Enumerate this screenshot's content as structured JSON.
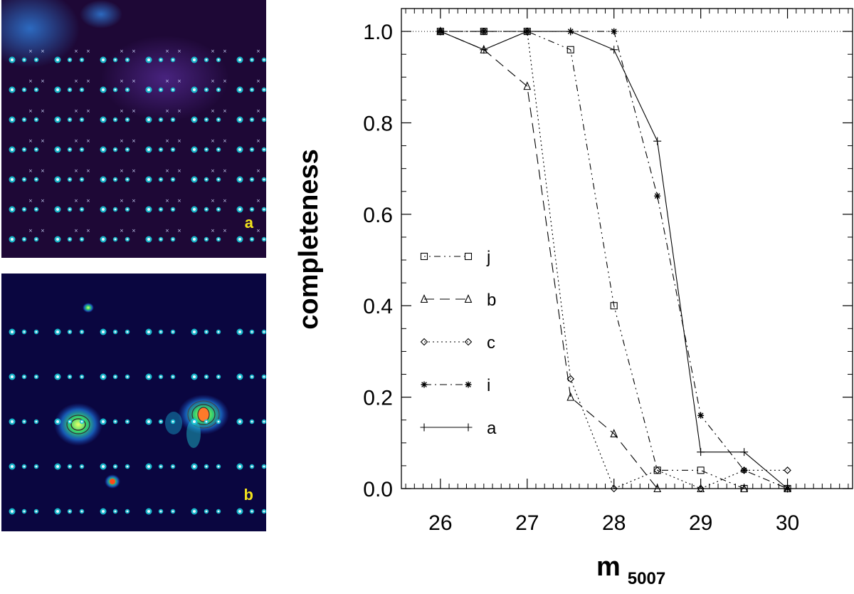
{
  "panels": {
    "a": {
      "label": "a",
      "grid_rows": 7,
      "grid_cols": 19
    },
    "b": {
      "label": "b",
      "grid_rows": 5,
      "grid_cols": 19
    }
  },
  "colors": {
    "panel_a_bg": "#1e0836",
    "panel_b_bg": "#0a0640",
    "source_core": "#eaf6ff",
    "source_halo": "#18c9d8",
    "label": "#f2e31c"
  },
  "chart_data": {
    "type": "line",
    "title": "",
    "xlabel": "m",
    "xlabel_sub": "5007",
    "ylabel": "completeness",
    "xlim": [
      25.55,
      30.75
    ],
    "ylim": [
      0.0,
      1.05
    ],
    "xticks": [
      26,
      27,
      28,
      29,
      30
    ],
    "yticks": [
      0.0,
      0.2,
      0.4,
      0.6,
      0.8,
      1.0
    ],
    "xtick_labels": [
      "26",
      "27",
      "28",
      "29",
      "30"
    ],
    "ytick_labels": [
      "0.0",
      "0.2",
      "0.4",
      "0.6",
      "0.8",
      "1.0"
    ],
    "reference_line": 1.0,
    "series": [
      {
        "name": "j",
        "marker": "square",
        "dash": "2 5 2 5 9 5",
        "x": [
          26,
          26.5,
          27,
          27.5,
          28,
          28.5,
          29,
          29.5,
          30
        ],
        "y": [
          1.0,
          1.0,
          1.0,
          0.96,
          0.4,
          0.04,
          0.04,
          0.0,
          0.0
        ]
      },
      {
        "name": "b",
        "marker": "triangle",
        "dash": "14 8",
        "x": [
          26,
          26.5,
          27,
          27.5,
          28,
          28.5,
          29,
          29.5,
          30
        ],
        "y": [
          1.0,
          0.96,
          0.88,
          0.2,
          0.12,
          0.0,
          0.0,
          0.0,
          0.0
        ]
      },
      {
        "name": "c",
        "marker": "diamond",
        "dash": "2 4",
        "x": [
          26,
          26.5,
          27,
          27.5,
          28,
          28.5,
          29,
          29.5,
          30
        ],
        "y": [
          1.0,
          1.0,
          1.0,
          0.24,
          0.0,
          0.04,
          0.0,
          0.04,
          0.04
        ]
      },
      {
        "name": "i",
        "marker": "asterisk",
        "dash": "10 5 2 5",
        "x": [
          26,
          26.5,
          27,
          27.5,
          28,
          28.5,
          29,
          29.5,
          30
        ],
        "y": [
          1.0,
          1.0,
          1.0,
          1.0,
          1.0,
          0.64,
          0.16,
          0.04,
          0.0
        ]
      },
      {
        "name": "a",
        "marker": "plus",
        "dash": "",
        "x": [
          26,
          26.5,
          27,
          27.5,
          28,
          28.5,
          29,
          29.5,
          30
        ],
        "y": [
          1.0,
          0.96,
          1.0,
          1.0,
          0.96,
          0.76,
          0.08,
          0.08,
          0.0
        ]
      }
    ]
  }
}
